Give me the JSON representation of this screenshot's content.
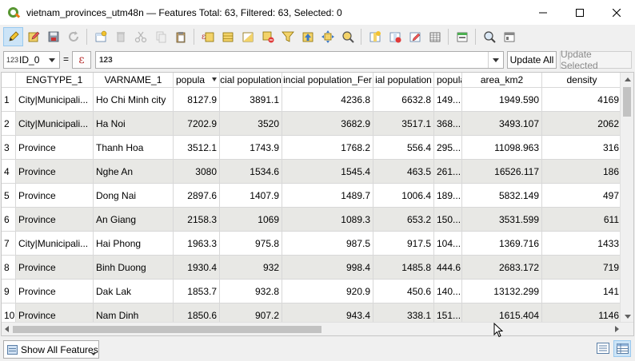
{
  "window": {
    "title": "vietnam_provinces_utm48n — Features Total: 63, Filtered: 63, Selected: 0"
  },
  "toolbar": {
    "buttons": [
      "toggle-editing-icon",
      "multi-edit-icon",
      "save-edits-icon",
      "reload-icon",
      "add-feature-icon",
      "delete-feature-icon",
      "cut-icon",
      "copy-icon",
      "paste-icon",
      "expression-select-icon",
      "select-all-icon",
      "invert-selection-icon",
      "deselect-all-icon",
      "filter-icon",
      "move-selection-top-icon",
      "pan-to-selection-icon",
      "zoom-to-selection-icon",
      "new-field-icon",
      "delete-field-icon",
      "field-calculator-icon",
      "conditional-formatting-icon",
      "dock-table-icon",
      "actions-icon",
      "zoom-map-icon"
    ]
  },
  "exprbar": {
    "field_badge": "123",
    "field_value": "ID_0",
    "equals": "=",
    "epsilon": "ε",
    "expression": "123",
    "update_all": "Update All",
    "update_selected": "Update Selected"
  },
  "table": {
    "columns": [
      {
        "label": "ENGTYPE_1",
        "align": "center"
      },
      {
        "label": "VARNAME_1",
        "align": "center"
      },
      {
        "label": "popula",
        "align": "left",
        "sorted": true
      },
      {
        "label": "cial population",
        "align": "center"
      },
      {
        "label": "incial population_Fer",
        "align": "center"
      },
      {
        "label": "ial population",
        "align": "center"
      },
      {
        "label": "popula",
        "align": "left"
      },
      {
        "label": "area_km2",
        "align": "center"
      },
      {
        "label": "density",
        "align": "center"
      }
    ],
    "rows": [
      {
        "n": "1",
        "c": [
          "City|Municipali...",
          "Ho Chi Minh city",
          "8127.9",
          "3891.1",
          "4236.8",
          "6632.8",
          "149...",
          "1949.590",
          "4169"
        ]
      },
      {
        "n": "2",
        "c": [
          "City|Municipali...",
          "Ha Noi",
          "7202.9",
          "3520",
          "3682.9",
          "3517.1",
          "368...",
          "3493.107",
          "2062"
        ]
      },
      {
        "n": "3",
        "c": [
          "Province",
          "Thanh Hoa",
          "3512.1",
          "1743.9",
          "1768.2",
          "556.4",
          "295...",
          "11098.963",
          "316"
        ]
      },
      {
        "n": "4",
        "c": [
          "Province",
          "Nghe An",
          "3080",
          "1534.6",
          "1545.4",
          "463.5",
          "261...",
          "16526.117",
          "186"
        ]
      },
      {
        "n": "5",
        "c": [
          "Province",
          "Dong Nai",
          "2897.6",
          "1407.9",
          "1489.7",
          "1006.4",
          "189...",
          "5832.149",
          "497"
        ]
      },
      {
        "n": "6",
        "c": [
          "Province",
          "An Giang",
          "2158.3",
          "1069",
          "1089.3",
          "653.2",
          "150...",
          "3531.599",
          "611"
        ]
      },
      {
        "n": "7",
        "c": [
          "City|Municipali...",
          "Hai Phong",
          "1963.3",
          "975.8",
          "987.5",
          "917.5",
          "104...",
          "1369.716",
          "1433"
        ]
      },
      {
        "n": "8",
        "c": [
          "Province",
          "Binh  Duong",
          "1930.4",
          "932",
          "998.4",
          "1485.8",
          "444.6",
          "2683.172",
          "719"
        ]
      },
      {
        "n": "9",
        "c": [
          "Province",
          "Dak Lak",
          "1853.7",
          "932.8",
          "920.9",
          "450.6",
          "140...",
          "13132.299",
          "141"
        ]
      },
      {
        "n": "10",
        "c": [
          "Province",
          "Nam Dinh",
          "1850.6",
          "907.2",
          "943.4",
          "338.1",
          "151...",
          "1615.404",
          "1146"
        ]
      }
    ]
  },
  "bottom": {
    "show_all": "Show All Features"
  }
}
